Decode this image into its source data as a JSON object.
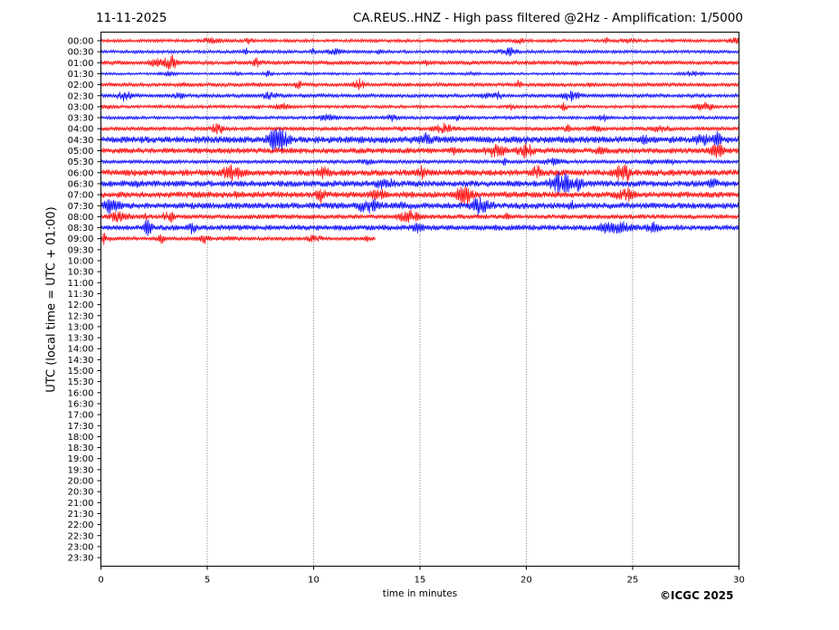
{
  "header": {
    "date": "11-11-2025",
    "title": "CA.REUS..HNZ - High pass filtered @2Hz - Amplification: 1/5000"
  },
  "footer": {
    "copyright": "©ICGC 2025"
  },
  "chart_data": {
    "type": "line",
    "title": "CA.REUS..HNZ - High pass filtered @2Hz - Amplification: 1/5000",
    "xlabel": "time in minutes",
    "ylabel": "UTC (local time = UTC + 01:00)",
    "xlim": [
      0,
      30
    ],
    "xticks": [
      "0",
      "5",
      "10",
      "15",
      "20",
      "25",
      "30"
    ],
    "x_grid": "vertical dotted lines at 5, 10, 15, 20, 25",
    "yticks": [
      "00:00",
      "00:30",
      "01:00",
      "01:30",
      "02:00",
      "02:30",
      "03:00",
      "03:30",
      "04:00",
      "04:30",
      "05:00",
      "05:30",
      "06:00",
      "06:30",
      "07:00",
      "07:30",
      "08:00",
      "08:30",
      "09:00",
      "09:30",
      "10:00",
      "10:30",
      "11:00",
      "11:30",
      "12:00",
      "12:30",
      "13:00",
      "13:30",
      "14:00",
      "14:30",
      "15:00",
      "15:30",
      "16:00",
      "16:30",
      "17:00",
      "17:30",
      "18:00",
      "18:30",
      "19:00",
      "19:30",
      "20:00",
      "20:30",
      "21:00",
      "21:30",
      "22:00",
      "22:30",
      "23:00",
      "23:30"
    ],
    "trace_colors": [
      "#ff0000",
      "#0000ff"
    ],
    "traces": [
      {
        "row": "00:00",
        "color": "#ff0000",
        "start_min": 0,
        "end_min": 30,
        "amplitude": 1.0
      },
      {
        "row": "00:30",
        "color": "#0000ff",
        "start_min": 0,
        "end_min": 30,
        "amplitude": 1.0
      },
      {
        "row": "01:00",
        "color": "#ff0000",
        "start_min": 0,
        "end_min": 30,
        "amplitude": 1.3
      },
      {
        "row": "01:30",
        "color": "#0000ff",
        "start_min": 0,
        "end_min": 30,
        "amplitude": 0.8
      },
      {
        "row": "02:00",
        "color": "#ff0000",
        "start_min": 0,
        "end_min": 30,
        "amplitude": 1.2
      },
      {
        "row": "02:30",
        "color": "#0000ff",
        "start_min": 0,
        "end_min": 30,
        "amplitude": 1.2
      },
      {
        "row": "03:00",
        "color": "#ff0000",
        "start_min": 0,
        "end_min": 30,
        "amplitude": 1.0
      },
      {
        "row": "03:30",
        "color": "#0000ff",
        "start_min": 0,
        "end_min": 30,
        "amplitude": 1.0
      },
      {
        "row": "04:00",
        "color": "#ff0000",
        "start_min": 0,
        "end_min": 30,
        "amplitude": 1.3
      },
      {
        "row": "04:30",
        "color": "#0000ff",
        "start_min": 0,
        "end_min": 30,
        "amplitude": 2.2
      },
      {
        "row": "05:00",
        "color": "#ff0000",
        "start_min": 0,
        "end_min": 30,
        "amplitude": 1.8
      },
      {
        "row": "05:30",
        "color": "#0000ff",
        "start_min": 0,
        "end_min": 30,
        "amplitude": 1.2
      },
      {
        "row": "06:00",
        "color": "#ff0000",
        "start_min": 0,
        "end_min": 30,
        "amplitude": 2.0
      },
      {
        "row": "06:30",
        "color": "#0000ff",
        "start_min": 0,
        "end_min": 30,
        "amplitude": 2.0
      },
      {
        "row": "07:00",
        "color": "#ff0000",
        "start_min": 0,
        "end_min": 30,
        "amplitude": 2.0
      },
      {
        "row": "07:30",
        "color": "#0000ff",
        "start_min": 0,
        "end_min": 30,
        "amplitude": 2.0
      },
      {
        "row": "08:00",
        "color": "#ff0000",
        "start_min": 0,
        "end_min": 30,
        "amplitude": 1.5
      },
      {
        "row": "08:30",
        "color": "#0000ff",
        "start_min": 0,
        "end_min": 30,
        "amplitude": 1.8
      },
      {
        "row": "09:00",
        "color": "#ff0000",
        "start_min": 0,
        "end_min": 12.9,
        "amplitude": 1.2
      }
    ]
  }
}
